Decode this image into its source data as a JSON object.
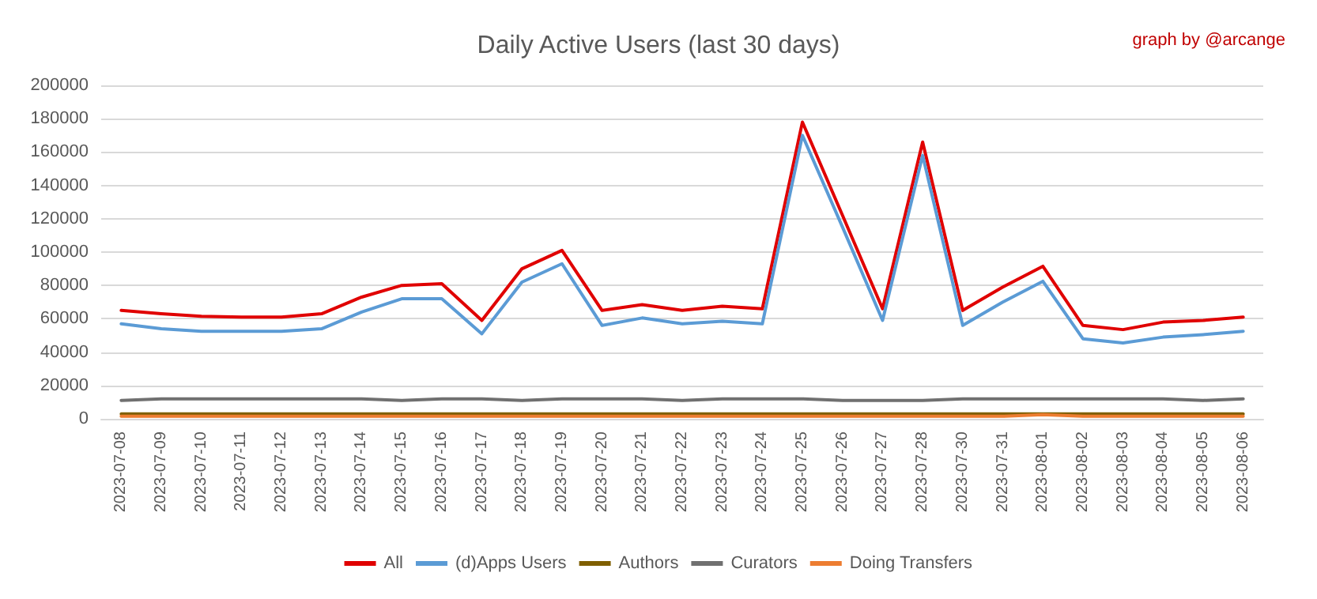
{
  "chart_data": {
    "type": "line",
    "title": "Daily Active Users (last 30 days)",
    "annotations": [
      "graph by @arcange"
    ],
    "categories": [
      "2023-07-08",
      "2023-07-09",
      "2023-07-10",
      "2023-07-11",
      "2023-07-12",
      "2023-07-13",
      "2023-07-14",
      "2023-07-15",
      "2023-07-16",
      "2023-07-17",
      "2023-07-18",
      "2023-07-19",
      "2023-07-20",
      "2023-07-21",
      "2023-07-22",
      "2023-07-23",
      "2023-07-24",
      "2023-07-25",
      "2023-07-26",
      "2023-07-27",
      "2023-07-28",
      "2023-07-30",
      "2023-07-31",
      "2023-08-01",
      "2023-08-02",
      "2023-08-03",
      "2023-08-04",
      "2023-08-05",
      "2023-08-06"
    ],
    "series": [
      {
        "name": "All",
        "color": "#e00000",
        "values": [
          65000,
          63000,
          61500,
          61000,
          61000,
          63000,
          73000,
          80000,
          81000,
          59000,
          90000,
          101000,
          65000,
          68500,
          65000,
          67500,
          66000,
          178000,
          122000,
          66000,
          166000,
          65000,
          79000,
          91500,
          56000,
          53500,
          58000,
          59000,
          61000
        ]
      },
      {
        "name": "(d)Apps Users",
        "color": "#5b9bd5",
        "values": [
          57000,
          54000,
          52500,
          52500,
          52500,
          54000,
          64000,
          72000,
          72000,
          51000,
          82000,
          93000,
          56000,
          60500,
          57000,
          58500,
          57000,
          170000,
          115000,
          59000,
          158000,
          56000,
          70000,
          82500,
          48000,
          45500,
          49000,
          50500,
          52500
        ]
      },
      {
        "name": "Authors",
        "color": "#7f5f00",
        "values": [
          3000,
          3000,
          3000,
          3000,
          3000,
          3000,
          3000,
          3000,
          3000,
          3000,
          3000,
          3000,
          3000,
          3000,
          3000,
          3000,
          3000,
          3000,
          3000,
          3000,
          3000,
          3000,
          3000,
          3000,
          3000,
          3000,
          3000,
          3000,
          3000
        ]
      },
      {
        "name": "Curators",
        "color": "#707070",
        "values": [
          11000,
          12000,
          12000,
          12000,
          12000,
          12000,
          12000,
          11000,
          12000,
          12000,
          11000,
          12000,
          12000,
          12000,
          11000,
          12000,
          12000,
          12000,
          11000,
          11000,
          11000,
          12000,
          12000,
          12000,
          12000,
          12000,
          12000,
          11000,
          12000
        ]
      },
      {
        "name": "Doing Transfers",
        "color": "#ed7d31",
        "values": [
          1500,
          1500,
          1500,
          1500,
          1500,
          1500,
          1500,
          1500,
          1500,
          1500,
          1500,
          1500,
          1500,
          1500,
          1500,
          1500,
          1500,
          1500,
          1500,
          1500,
          1500,
          1500,
          1500,
          2500,
          1500,
          1500,
          1500,
          1500,
          1500
        ]
      }
    ],
    "ylim": [
      0,
      200000
    ],
    "yticks": [
      0,
      20000,
      40000,
      60000,
      80000,
      100000,
      120000,
      140000,
      160000,
      180000,
      200000
    ],
    "grid": "y",
    "legend": "bottom",
    "marker": "none",
    "line_style": "solid"
  }
}
